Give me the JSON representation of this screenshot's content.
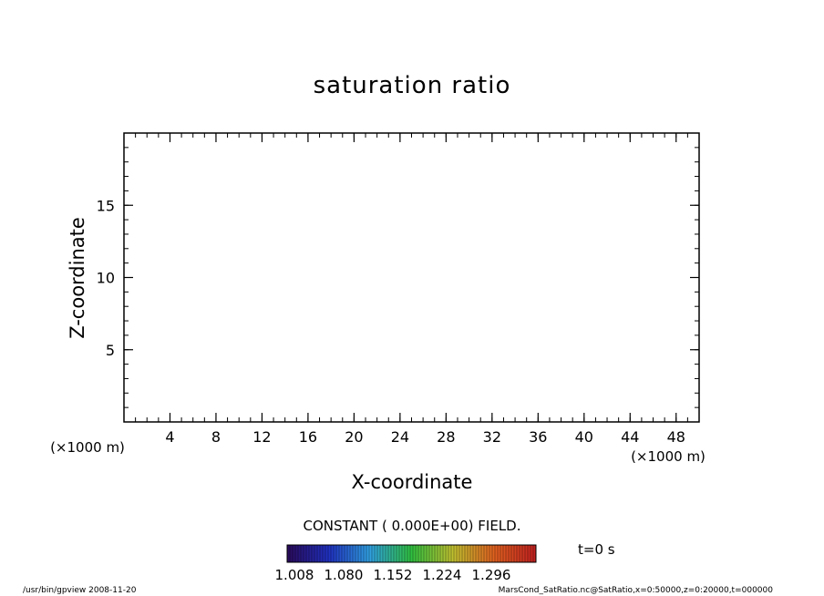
{
  "chart_data": {
    "type": "heatmap",
    "title": "saturation ratio",
    "xlabel": "X-coordinate",
    "ylabel": "Z-coordinate",
    "x_unit_label": "(×1000 m)",
    "y_unit_label": "(×1000 m)",
    "xlim": [
      0,
      50
    ],
    "ylim": [
      0,
      20
    ],
    "x_ticks": [
      4,
      8,
      12,
      16,
      20,
      24,
      28,
      32,
      36,
      40,
      44,
      48
    ],
    "y_ticks": [
      5,
      10,
      15
    ],
    "x_minor_step": 1,
    "y_minor_step": 1,
    "grid": false,
    "field_note": "CONSTANT ( 0.000E+00) FIELD.",
    "colorbar": {
      "tick_labels": [
        "1.008",
        "1.080",
        "1.152",
        "1.224",
        "1.296"
      ],
      "colors": [
        "#2a0a5a",
        "#2030c0",
        "#30a0e0",
        "#30c040",
        "#c0c030",
        "#e06020",
        "#c02020"
      ]
    },
    "time_label": "t=0 s"
  },
  "footer": {
    "left": "/usr/bin/gpview   2008-11-20",
    "right": "MarsCond_SatRatio.nc@SatRatio,x=0:50000,z=0:20000,t=000000"
  }
}
